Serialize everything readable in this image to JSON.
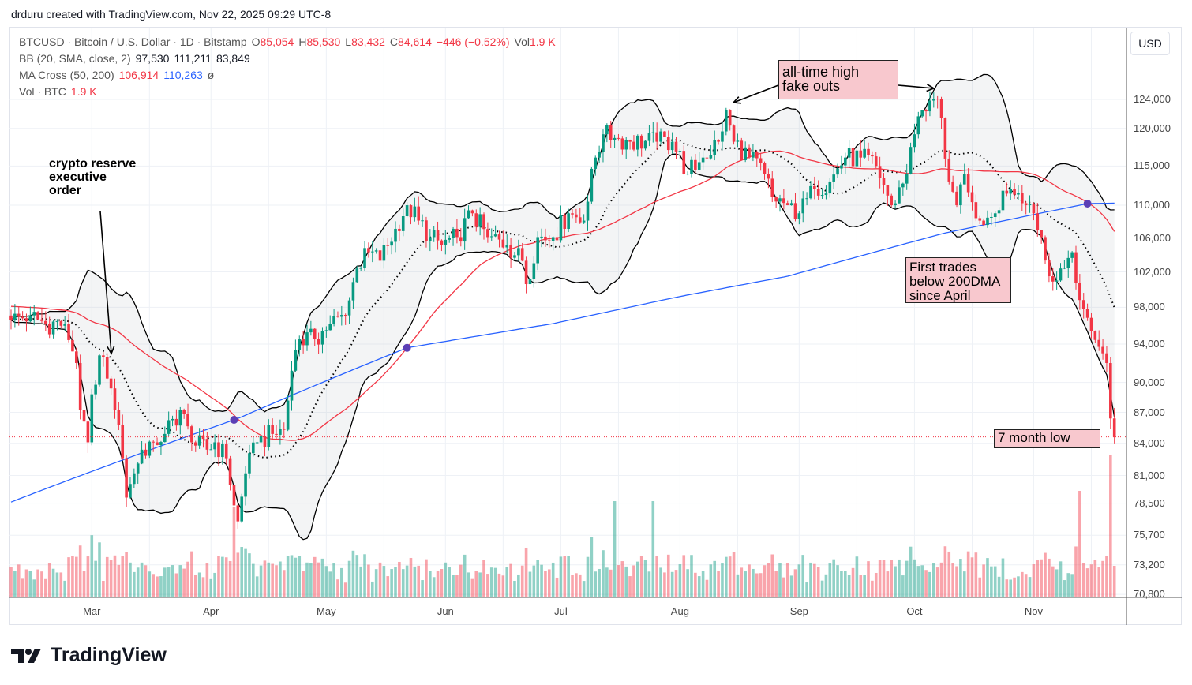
{
  "credit": "drduru created with TradingView.com, Nov 22, 2025 09:29 UTC-8",
  "legend": {
    "symbol": "BTCUSD · Bitcoin / U.S. Dollar · 1D · Bitstamp",
    "o_label": "O",
    "o": "85,054",
    "h_label": "H",
    "h": "85,530",
    "l_label": "L",
    "l": "83,432",
    "c_label": "C",
    "c": "84,614",
    "change": "−446 (−0.52%)",
    "vol_label": "Vol",
    "vol": "1.9 K",
    "bb_label": "BB (20, SMA, close, 2)",
    "bb_mid": "97,530",
    "bb_upper": "111,211",
    "bb_lower": "83,849",
    "ma_label": "MA Cross (50, 200)",
    "ma50": "106,914",
    "ma200": "110,263",
    "ma_cross_symbol": "ø",
    "volume_label": "Vol · BTC",
    "volume_value": "1.9 K"
  },
  "currency_button": "USD",
  "brand": "TradingView",
  "colors": {
    "up": "#089981",
    "down": "#f23645",
    "ma50": "#f23645",
    "ma200": "#2962ff",
    "cross": "#5b3fb5",
    "annotation_fill": "#f8c8ce"
  },
  "annotations": {
    "crypto_reserve": [
      "crypto reserve",
      "executive",
      "order"
    ],
    "ath": [
      "all-time high",
      "fake outs"
    ],
    "below200": [
      "First trades",
      "below 200DMA",
      "since April"
    ],
    "low": "7 month low"
  },
  "chart_data": {
    "type": "candlestick",
    "symbol": "BTCUSD",
    "interval": "1D",
    "scale": "log",
    "start_date": "2025-02-08",
    "end_date": "2025-11-22",
    "ylim": [
      70800,
      128000
    ],
    "y_ticks": [
      "124,000",
      "120,000",
      "115,000",
      "110,000",
      "106,000",
      "102,000",
      "98,000",
      "94,000",
      "90,000",
      "87,000",
      "84,000",
      "81,000",
      "78,500",
      "75,700",
      "73,200",
      "70,800"
    ],
    "y_tick_values": [
      124000,
      120000,
      115000,
      110000,
      106000,
      102000,
      98000,
      94000,
      90000,
      87000,
      84000,
      81000,
      78500,
      75700,
      73200,
      70800
    ],
    "x_ticks": [
      "Mar",
      "Apr",
      "May",
      "Jun",
      "Jul",
      "Aug",
      "Sep",
      "Oct",
      "Nov"
    ],
    "x_tick_days": [
      21,
      52,
      82,
      113,
      143,
      174,
      205,
      235,
      266
    ],
    "last_price": 84614,
    "close_anchors_day_price": [
      [
        0,
        96600
      ],
      [
        5,
        97100
      ],
      [
        9,
        96200
      ],
      [
        14,
        96200
      ],
      [
        17,
        92000
      ],
      [
        18,
        87200
      ],
      [
        20,
        84100
      ],
      [
        21,
        88800
      ],
      [
        23,
        92800
      ],
      [
        25,
        90400
      ],
      [
        27,
        87200
      ],
      [
        29,
        82600
      ],
      [
        30,
        79000
      ],
      [
        32,
        81200
      ],
      [
        34,
        83400
      ],
      [
        37,
        84100
      ],
      [
        40,
        84900
      ],
      [
        44,
        87200
      ],
      [
        47,
        84100
      ],
      [
        51,
        83400
      ],
      [
        53,
        84100
      ],
      [
        56,
        82600
      ],
      [
        58,
        78300
      ],
      [
        59,
        76900
      ],
      [
        61,
        81200
      ],
      [
        64,
        84100
      ],
      [
        68,
        84900
      ],
      [
        71,
        85300
      ],
      [
        73,
        91200
      ],
      [
        75,
        94500
      ],
      [
        79,
        94500
      ],
      [
        83,
        96200
      ],
      [
        87,
        97100
      ],
      [
        90,
        102400
      ],
      [
        93,
        104300
      ],
      [
        96,
        103300
      ],
      [
        100,
        107100
      ],
      [
        103,
        110000
      ],
      [
        106,
        108100
      ],
      [
        109,
        106100
      ],
      [
        112,
        105200
      ],
      [
        116,
        106100
      ],
      [
        120,
        109000
      ],
      [
        124,
        106100
      ],
      [
        129,
        105200
      ],
      [
        133,
        103300
      ],
      [
        134,
        100600
      ],
      [
        137,
        106100
      ],
      [
        141,
        106100
      ],
      [
        145,
        109000
      ],
      [
        149,
        108100
      ],
      [
        152,
        116100
      ],
      [
        154,
        119200
      ],
      [
        157,
        118700
      ],
      [
        161,
        118200
      ],
      [
        168,
        118200
      ],
      [
        172,
        118200
      ],
      [
        176,
        114000
      ],
      [
        180,
        116100
      ],
      [
        184,
        118200
      ],
      [
        186,
        122500
      ],
      [
        188,
        118200
      ],
      [
        192,
        116100
      ],
      [
        196,
        114000
      ],
      [
        198,
        111000
      ],
      [
        202,
        110000
      ],
      [
        205,
        109000
      ],
      [
        209,
        112000
      ],
      [
        213,
        113000
      ],
      [
        217,
        116100
      ],
      [
        221,
        116100
      ],
      [
        225,
        115000
      ],
      [
        229,
        110000
      ],
      [
        233,
        114000
      ],
      [
        235,
        119200
      ],
      [
        237,
        122500
      ],
      [
        240,
        124100
      ],
      [
        242,
        121400
      ],
      [
        244,
        113000
      ],
      [
        246,
        110000
      ],
      [
        248,
        114000
      ],
      [
        252,
        108100
      ],
      [
        256,
        109000
      ],
      [
        260,
        112000
      ],
      [
        264,
        110000
      ],
      [
        266,
        109000
      ],
      [
        268,
        106100
      ],
      [
        270,
        101500
      ],
      [
        273,
        102400
      ],
      [
        276,
        104300
      ],
      [
        278,
        98800
      ],
      [
        281,
        95400
      ],
      [
        283,
        93700
      ],
      [
        285,
        92000
      ],
      [
        286,
        86400
      ],
      [
        287,
        84614
      ]
    ],
    "ma200_anchors_day_price": [
      [
        0,
        78600
      ],
      [
        59,
        86400
      ],
      [
        103,
        93600
      ],
      [
        141,
        96200
      ],
      [
        174,
        99200
      ],
      [
        202,
        101500
      ],
      [
        243,
        106600
      ],
      [
        280,
        110200
      ],
      [
        287,
        110263
      ]
    ],
    "indicators": [
      "BB (20, SMA, close, 2)",
      "MA Cross (50, 200)",
      "Volume"
    ],
    "cross_points_day": [
      58,
      103,
      280
    ]
  }
}
